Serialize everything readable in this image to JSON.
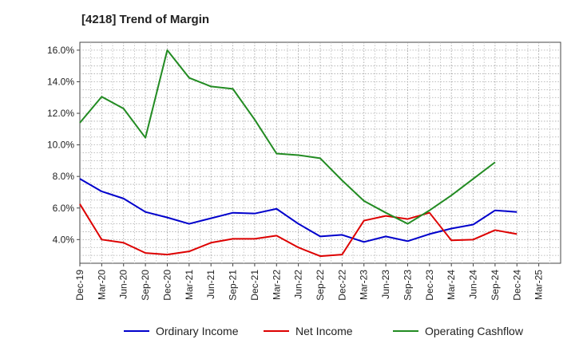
{
  "chart_data": {
    "type": "line",
    "title": "[4218]  Trend of Margin",
    "xlabel": "",
    "ylabel": "",
    "x": [
      "Dec-19",
      "Mar-20",
      "Jun-20",
      "Sep-20",
      "Dec-20",
      "Mar-21",
      "Jun-21",
      "Sep-21",
      "Dec-21",
      "Mar-22",
      "Jun-22",
      "Sep-22",
      "Dec-22",
      "Mar-23",
      "Jun-23",
      "Sep-23",
      "Dec-23",
      "Mar-24",
      "Jun-24",
      "Sep-24",
      "Dec-24",
      "Mar-25"
    ],
    "ylim": [
      2.5,
      16.5
    ],
    "yticks": [
      4.0,
      6.0,
      8.0,
      10.0,
      12.0,
      14.0,
      16.0
    ],
    "ytick_labels": [
      "4.0%",
      "6.0%",
      "8.0%",
      "10.0%",
      "12.0%",
      "14.0%",
      "16.0%"
    ],
    "grid": true,
    "legend_position": "bottom",
    "series": [
      {
        "name": "Ordinary Income",
        "color": "#0000cc",
        "values": [
          7.85,
          7.05,
          6.6,
          5.75,
          5.4,
          5.0,
          5.35,
          5.7,
          5.65,
          5.95,
          5.0,
          4.2,
          4.3,
          3.85,
          4.2,
          3.9,
          4.35,
          4.7,
          4.95,
          5.85,
          5.75,
          null
        ]
      },
      {
        "name": "Net Income",
        "color": "#dd0000",
        "values": [
          6.25,
          4.0,
          3.8,
          3.15,
          3.05,
          3.25,
          3.8,
          4.05,
          4.05,
          4.25,
          3.5,
          2.95,
          3.05,
          5.2,
          5.5,
          5.3,
          5.7,
          3.95,
          4.0,
          4.6,
          4.35,
          null
        ]
      },
      {
        "name": "Operating Cashflow",
        "color": "#228b22",
        "values": [
          11.4,
          13.05,
          12.3,
          10.45,
          16.0,
          14.25,
          13.7,
          13.55,
          11.6,
          9.45,
          9.35,
          9.15,
          7.75,
          6.45,
          5.7,
          5.0,
          5.85,
          6.8,
          7.85,
          8.9,
          null,
          null
        ]
      }
    ]
  }
}
